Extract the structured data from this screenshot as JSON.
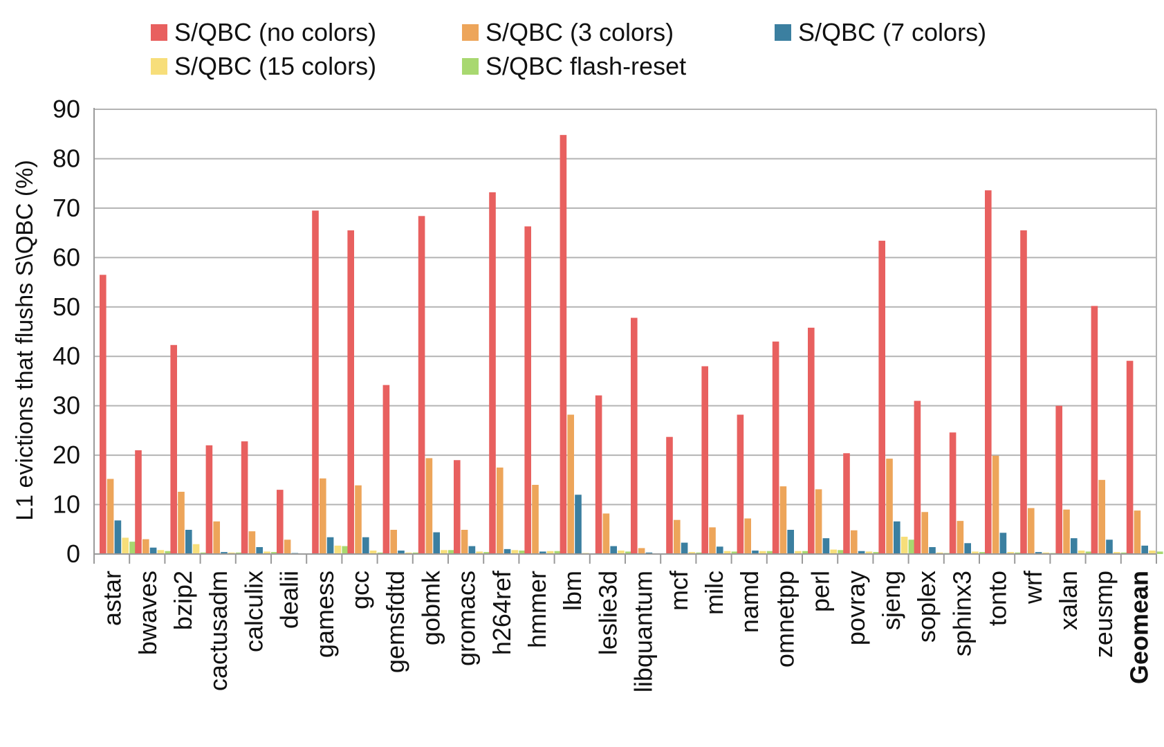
{
  "chart_data": {
    "type": "bar",
    "ylabel": "L1 evictions that flushs S\\QBC (%)",
    "xlabel": "",
    "ylim": [
      0,
      90
    ],
    "yticks": [
      "0",
      "10",
      "20",
      "30",
      "40",
      "50",
      "60",
      "70",
      "80",
      "90"
    ],
    "grid": true,
    "legend_position": "top",
    "categories": [
      "astar",
      "bwaves",
      "bzip2",
      "cactusadm",
      "calculix",
      "dealii",
      "gamess",
      "gcc",
      "gemsfdtd",
      "gobmk",
      "gromacs",
      "h264ref",
      "hmmer",
      "lbm",
      "leslie3d",
      "libquantum",
      "mcf",
      "milc",
      "namd",
      "omnetpp",
      "perl",
      "povray",
      "sjeng",
      "soplex",
      "sphinx3",
      "tonto",
      "wrf",
      "xalan",
      "zeusmp",
      "Geomean"
    ],
    "bold_categories": [
      "Geomean"
    ],
    "series": [
      {
        "name": "S/QBC (no colors)",
        "color": "#e8605f",
        "values": [
          56.5,
          21,
          42.3,
          22,
          22.8,
          13,
          69.5,
          65.5,
          34.2,
          68.4,
          19,
          73.2,
          66.3,
          84.8,
          32.1,
          47.8,
          23.7,
          38,
          28.2,
          43,
          45.8,
          20.4,
          63.4,
          31,
          24.6,
          73.6,
          65.5,
          30,
          50.2,
          39.1
        ]
      },
      {
        "name": "S/QBC (3 colors)",
        "color": "#eda55a",
        "values": [
          15.2,
          3,
          12.6,
          6.6,
          4.6,
          2.9,
          15.3,
          13.9,
          4.9,
          19.4,
          4.9,
          17.5,
          14,
          28.2,
          8.2,
          1.2,
          6.9,
          5.4,
          7.2,
          13.7,
          13.1,
          4.8,
          19.3,
          8.5,
          6.7,
          19.9,
          9.3,
          9,
          15,
          8.8
        ]
      },
      {
        "name": "S/QBC (7 colors)",
        "color": "#3b7fa0",
        "values": [
          6.8,
          1.3,
          4.9,
          0.4,
          1.4,
          0.2,
          3.4,
          3.4,
          0.7,
          4.4,
          1.6,
          1,
          0.5,
          12,
          1.6,
          0.3,
          2.3,
          1.5,
          0.7,
          4.9,
          3.2,
          0.6,
          6.6,
          1.4,
          2.2,
          4.3,
          0.4,
          3.2,
          2.9,
          1.7
        ]
      },
      {
        "name": "S/QBC (15 colors)",
        "color": "#f7de7a",
        "values": [
          3.3,
          0.8,
          2,
          0.3,
          0.5,
          0.1,
          1.7,
          0.7,
          0.3,
          0.8,
          0.5,
          0.8,
          0.6,
          0.2,
          0.7,
          0.1,
          0.4,
          0.6,
          0.6,
          0.6,
          0.9,
          0.5,
          3.5,
          0.3,
          0.5,
          0.4,
          0.3,
          0.7,
          0.4,
          0.7
        ]
      },
      {
        "name": "S/QBC flash-reset",
        "color": "#a8d870",
        "values": [
          2.5,
          0.6,
          0.3,
          0.3,
          0.4,
          0.1,
          1.6,
          0.3,
          0.3,
          0.8,
          0.4,
          0.7,
          0.6,
          0.1,
          0.5,
          0,
          0.3,
          0.5,
          0.6,
          0.6,
          0.8,
          0.4,
          2.9,
          0.2,
          0.4,
          0.3,
          0.2,
          0.5,
          0.3,
          0.5
        ]
      }
    ]
  }
}
